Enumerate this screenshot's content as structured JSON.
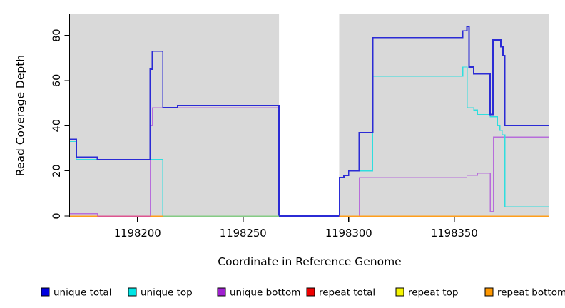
{
  "chart_data": {
    "type": "line",
    "subtype": "step",
    "title": "",
    "xlabel": "Coordinate in Reference Genome",
    "ylabel": "Read Coverage Depth",
    "xlim": [
      1198168,
      1198395
    ],
    "ylim": [
      0,
      89
    ],
    "xticks": [
      1198200,
      1198250,
      1198300,
      1198350
    ],
    "yticks": [
      0,
      20,
      40,
      60,
      80
    ],
    "grid": false,
    "panel_bg": "#d9d9d9",
    "outer_bg": "#ffffff",
    "no_data_gap": [
      1198267,
      1198295.5
    ],
    "legend_position": "bottom",
    "series": [
      {
        "name": "repeat total",
        "color": "#dd5590",
        "legend_color": "#ee0000",
        "points": [
          [
            1198168,
            0
          ]
        ]
      },
      {
        "name": "repeat top",
        "color": "#f0f000",
        "legend_color": "#f5f500",
        "points": [
          [
            1198168,
            0
          ]
        ]
      },
      {
        "name": "repeat bottom",
        "color": "#ff9e1b",
        "legend_color": "#ff9800",
        "points": [
          [
            1198168,
            0
          ]
        ]
      },
      {
        "name": "unique bottom",
        "color": "#b76ddb",
        "legend_color": "#a020d0",
        "points": [
          [
            1198168,
            1
          ],
          [
            1198181,
            0
          ],
          [
            1198206,
            40
          ],
          [
            1198207,
            48
          ],
          [
            1198267,
            0
          ],
          [
            1198305,
            17
          ],
          [
            1198356,
            18
          ],
          [
            1198361,
            19
          ],
          [
            1198367,
            2
          ],
          [
            1198368.5,
            35
          ]
        ]
      },
      {
        "name": "unique top",
        "color": "#2fdede",
        "legend_color": "#00e5e5",
        "points": [
          [
            1198168,
            33
          ],
          [
            1198171,
            25
          ],
          [
            1198212,
            0
          ],
          [
            1198295.7,
            17
          ],
          [
            1198297.7,
            18
          ],
          [
            1198300,
            20
          ],
          [
            1198311.4,
            62
          ],
          [
            1198354,
            66
          ],
          [
            1198356.1,
            48
          ],
          [
            1198359.2,
            47
          ],
          [
            1198361,
            45
          ],
          [
            1198367,
            44
          ],
          [
            1198370.4,
            40
          ],
          [
            1198371.6,
            38
          ],
          [
            1198372.7,
            36
          ],
          [
            1198374,
            4
          ]
        ]
      },
      {
        "name": "unique total",
        "color": "#2b2bd5",
        "legend_color": "#0000e0",
        "points": [
          [
            1198168,
            34
          ],
          [
            1198171,
            26
          ],
          [
            1198181,
            25
          ],
          [
            1198206,
            65
          ],
          [
            1198207,
            73
          ],
          [
            1198212,
            48
          ],
          [
            1198219,
            49
          ],
          [
            1198267,
            0
          ],
          [
            1198295.7,
            17
          ],
          [
            1198297.7,
            18
          ],
          [
            1198300,
            20
          ],
          [
            1198305,
            37
          ],
          [
            1198311.5,
            79
          ],
          [
            1198354,
            82
          ],
          [
            1198356,
            84
          ],
          [
            1198357,
            66
          ],
          [
            1198359.2,
            63
          ],
          [
            1198367,
            45
          ],
          [
            1198368.3,
            78
          ],
          [
            1198372,
            75
          ],
          [
            1198373,
            71
          ],
          [
            1198374,
            40
          ]
        ]
      }
    ],
    "baseline_segments": [
      {
        "from": 1198168,
        "to": 1198181,
        "color": "#ff9e1b"
      },
      {
        "from": 1198181,
        "to": 1198206,
        "color": "#dd5590"
      },
      {
        "from": 1198206,
        "to": 1198212,
        "color": "#ff9e1b"
      },
      {
        "from": 1198212,
        "to": 1198267,
        "color": "#85cc85"
      },
      {
        "from": 1198295.5,
        "to": 1198395,
        "color": "#ff9e1b"
      }
    ],
    "legend": [
      {
        "label": "unique total",
        "color": "#0000e0"
      },
      {
        "label": "unique top",
        "color": "#00e5e5"
      },
      {
        "label": "unique bottom",
        "color": "#a020d0"
      },
      {
        "label": "repeat total",
        "color": "#ee0000"
      },
      {
        "label": "repeat top",
        "color": "#f5f500"
      },
      {
        "label": "repeat bottom",
        "color": "#ff9800"
      }
    ]
  }
}
